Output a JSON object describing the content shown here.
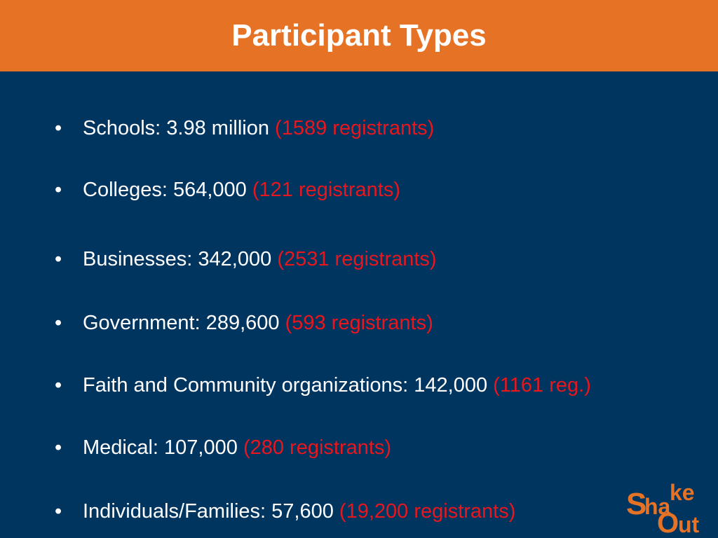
{
  "header": {
    "title": "Participant Types",
    "background_color": "#E67226"
  },
  "colors": {
    "background": "#003560",
    "text": "#FFFFFF",
    "highlight": "#E8161D",
    "logo_orange": "#E67226"
  },
  "bullet_symbol": "•",
  "items": [
    {
      "main": "Schools: 3.98 million ",
      "registrants": "(1589 registrants)"
    },
    {
      "main": "Colleges: 564,000 ",
      "registrants": "(121 registrants)"
    },
    {
      "main": "Businesses:  342,000 ",
      "registrants": "(2531 registrants)"
    },
    {
      "main": "Government: 289,600 ",
      "registrants": "(593 registrants)"
    },
    {
      "main": "Faith and Community organizations: 142,000 ",
      "registrants": "(1161 reg.)"
    },
    {
      "main": "Medical: 107,000 ",
      "registrants": "(280 registrants)"
    },
    {
      "main": "Individuals/Families:  57,600 ",
      "registrants": "(19,200 registrants)"
    }
  ],
  "logo": {
    "alt": "ShakeOut",
    "line1_big": "S",
    "line1_small": "ha",
    "line1_top": "ke",
    "line2_big": "O",
    "line2_small": "ut"
  }
}
